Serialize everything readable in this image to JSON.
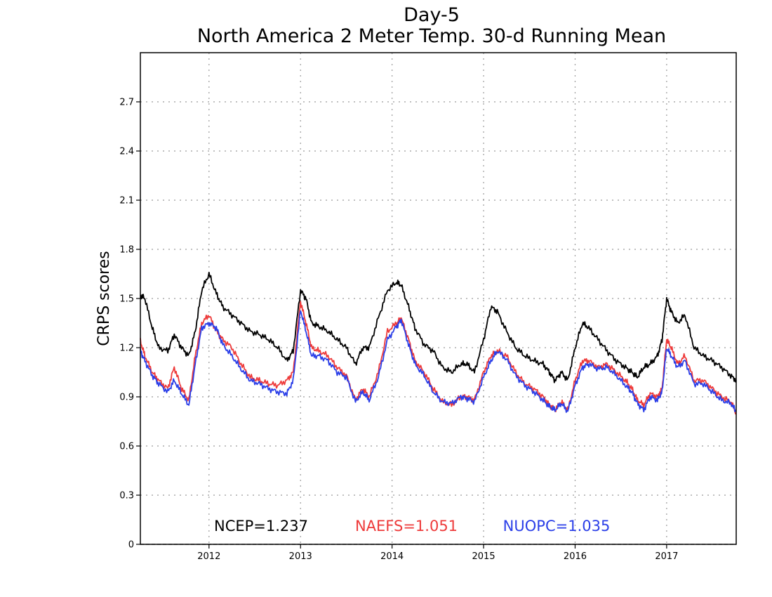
{
  "chart_data": {
    "type": "line",
    "title": "Day-5",
    "subtitle": "North America 2 Meter Temp. 30-d Running Mean",
    "ylabel": "CRPS scores",
    "xlabel": "",
    "xlim": [
      2011.25,
      2017.76
    ],
    "ylim": [
      0,
      3.0
    ],
    "yticks": [
      0,
      0.3,
      0.6,
      0.9,
      1.2,
      1.5,
      1.8,
      2.1,
      2.4,
      2.7
    ],
    "ytick_labels": [
      "0",
      "0.3",
      "0.6",
      "0.9",
      "1.2",
      "1.5",
      "1.8",
      "2.1",
      "2.4",
      "2.7"
    ],
    "xticks": [
      2012,
      2013,
      2014,
      2015,
      2016,
      2017
    ],
    "xtick_labels": [
      "2012",
      "2013",
      "2014",
      "2015",
      "2016",
      "2017"
    ],
    "grid": true,
    "legend_position": "bottom-inside",
    "series": [
      {
        "name": "NCEP",
        "legend_label": "NCEP=1.237",
        "color": "#000000",
        "x": [
          2011.25,
          2011.3,
          2011.38,
          2011.45,
          2011.55,
          2011.62,
          2011.7,
          2011.78,
          2011.85,
          2011.92,
          2012.0,
          2012.08,
          2012.15,
          2012.25,
          2012.35,
          2012.45,
          2012.55,
          2012.65,
          2012.75,
          2012.85,
          2012.92,
          2013.0,
          2013.06,
          2013.12,
          2013.2,
          2013.3,
          2013.4,
          2013.5,
          2013.6,
          2013.68,
          2013.75,
          2013.85,
          2013.95,
          2014.05,
          2014.1,
          2014.18,
          2014.25,
          2014.35,
          2014.45,
          2014.55,
          2014.65,
          2014.75,
          2014.82,
          2014.9,
          2015.0,
          2015.08,
          2015.15,
          2015.25,
          2015.35,
          2015.45,
          2015.55,
          2015.65,
          2015.72,
          2015.78,
          2015.85,
          2015.92,
          2016.0,
          2016.08,
          2016.15,
          2016.25,
          2016.35,
          2016.45,
          2016.55,
          2016.62,
          2016.68,
          2016.75,
          2016.82,
          2016.9,
          2016.95,
          2017.0,
          2017.05,
          2017.12,
          2017.2,
          2017.3,
          2017.4,
          2017.5,
          2017.6,
          2017.7,
          2017.76
        ],
        "y": [
          1.52,
          1.5,
          1.32,
          1.2,
          1.18,
          1.28,
          1.2,
          1.15,
          1.3,
          1.55,
          1.65,
          1.53,
          1.45,
          1.4,
          1.35,
          1.3,
          1.28,
          1.25,
          1.2,
          1.12,
          1.18,
          1.55,
          1.5,
          1.35,
          1.33,
          1.3,
          1.25,
          1.2,
          1.1,
          1.2,
          1.2,
          1.38,
          1.55,
          1.6,
          1.58,
          1.45,
          1.32,
          1.22,
          1.18,
          1.08,
          1.05,
          1.1,
          1.1,
          1.05,
          1.25,
          1.45,
          1.42,
          1.3,
          1.2,
          1.15,
          1.12,
          1.1,
          1.05,
          1.0,
          1.05,
          1.0,
          1.2,
          1.35,
          1.32,
          1.25,
          1.18,
          1.12,
          1.08,
          1.05,
          1.02,
          1.08,
          1.1,
          1.15,
          1.25,
          1.5,
          1.42,
          1.35,
          1.4,
          1.2,
          1.15,
          1.12,
          1.08,
          1.03,
          1.0
        ]
      },
      {
        "name": "NAEFS",
        "legend_label": "NAEFS=1.051",
        "color": "#ee3a3a",
        "x": [
          2011.25,
          2011.3,
          2011.38,
          2011.45,
          2011.55,
          2011.62,
          2011.7,
          2011.78,
          2011.85,
          2011.92,
          2012.0,
          2012.08,
          2012.15,
          2012.25,
          2012.35,
          2012.45,
          2012.55,
          2012.65,
          2012.75,
          2012.85,
          2012.92,
          2013.0,
          2013.06,
          2013.12,
          2013.2,
          2013.3,
          2013.4,
          2013.5,
          2013.6,
          2013.68,
          2013.75,
          2013.85,
          2013.95,
          2014.05,
          2014.1,
          2014.18,
          2014.25,
          2014.35,
          2014.45,
          2014.55,
          2014.65,
          2014.75,
          2014.82,
          2014.9,
          2015.0,
          2015.08,
          2015.15,
          2015.25,
          2015.35,
          2015.45,
          2015.55,
          2015.65,
          2015.72,
          2015.78,
          2015.85,
          2015.92,
          2016.0,
          2016.08,
          2016.15,
          2016.25,
          2016.35,
          2016.45,
          2016.55,
          2016.62,
          2016.68,
          2016.75,
          2016.82,
          2016.9,
          2016.95,
          2017.0,
          2017.05,
          2017.12,
          2017.2,
          2017.3,
          2017.4,
          2017.5,
          2017.6,
          2017.7,
          2017.76
        ],
        "y": [
          1.24,
          1.15,
          1.05,
          1.0,
          0.95,
          1.08,
          0.95,
          0.88,
          1.15,
          1.35,
          1.4,
          1.3,
          1.25,
          1.2,
          1.1,
          1.02,
          1.0,
          0.98,
          0.97,
          1.0,
          1.05,
          1.48,
          1.35,
          1.2,
          1.18,
          1.15,
          1.08,
          1.03,
          0.88,
          0.95,
          0.9,
          1.05,
          1.3,
          1.35,
          1.38,
          1.25,
          1.12,
          1.05,
          0.95,
          0.87,
          0.85,
          0.9,
          0.9,
          0.88,
          1.05,
          1.15,
          1.18,
          1.15,
          1.05,
          0.98,
          0.95,
          0.9,
          0.85,
          0.82,
          0.87,
          0.82,
          1.0,
          1.12,
          1.12,
          1.08,
          1.1,
          1.05,
          1.0,
          0.95,
          0.88,
          0.85,
          0.92,
          0.9,
          0.95,
          1.25,
          1.2,
          1.1,
          1.15,
          1.0,
          1.0,
          0.95,
          0.9,
          0.87,
          0.8
        ]
      },
      {
        "name": "NUOPC",
        "legend_label": "NUOPC=1.035",
        "color": "#2b3fe8",
        "x": [
          2011.25,
          2011.3,
          2011.38,
          2011.45,
          2011.55,
          2011.62,
          2011.7,
          2011.78,
          2011.85,
          2011.92,
          2012.0,
          2012.08,
          2012.15,
          2012.25,
          2012.35,
          2012.45,
          2012.55,
          2012.65,
          2012.75,
          2012.85,
          2012.92,
          2013.0,
          2013.06,
          2013.12,
          2013.2,
          2013.3,
          2013.4,
          2013.5,
          2013.6,
          2013.68,
          2013.75,
          2013.85,
          2013.95,
          2014.05,
          2014.1,
          2014.18,
          2014.25,
          2014.35,
          2014.45,
          2014.55,
          2014.65,
          2014.75,
          2014.82,
          2014.9,
          2015.0,
          2015.08,
          2015.15,
          2015.25,
          2015.35,
          2015.45,
          2015.55,
          2015.65,
          2015.72,
          2015.78,
          2015.85,
          2015.92,
          2016.0,
          2016.08,
          2016.15,
          2016.25,
          2016.35,
          2016.45,
          2016.55,
          2016.62,
          2016.68,
          2016.75,
          2016.82,
          2016.9,
          2016.95,
          2017.0,
          2017.05,
          2017.12,
          2017.2,
          2017.3,
          2017.4,
          2017.5,
          2017.6,
          2017.7,
          2017.76
        ],
        "y": [
          1.18,
          1.12,
          1.03,
          0.98,
          0.93,
          1.0,
          0.92,
          0.85,
          1.1,
          1.32,
          1.35,
          1.32,
          1.22,
          1.15,
          1.07,
          1.0,
          0.98,
          0.95,
          0.93,
          0.92,
          1.0,
          1.43,
          1.3,
          1.15,
          1.15,
          1.12,
          1.05,
          1.02,
          0.87,
          0.93,
          0.88,
          1.02,
          1.25,
          1.33,
          1.37,
          1.22,
          1.1,
          1.03,
          0.93,
          0.87,
          0.86,
          0.9,
          0.89,
          0.87,
          1.02,
          1.12,
          1.18,
          1.13,
          1.03,
          0.97,
          0.93,
          0.88,
          0.84,
          0.82,
          0.86,
          0.81,
          0.97,
          1.08,
          1.1,
          1.07,
          1.08,
          1.03,
          0.97,
          0.93,
          0.86,
          0.82,
          0.9,
          0.88,
          0.93,
          1.2,
          1.15,
          1.08,
          1.12,
          0.98,
          0.98,
          0.93,
          0.88,
          0.86,
          0.81
        ]
      }
    ]
  }
}
